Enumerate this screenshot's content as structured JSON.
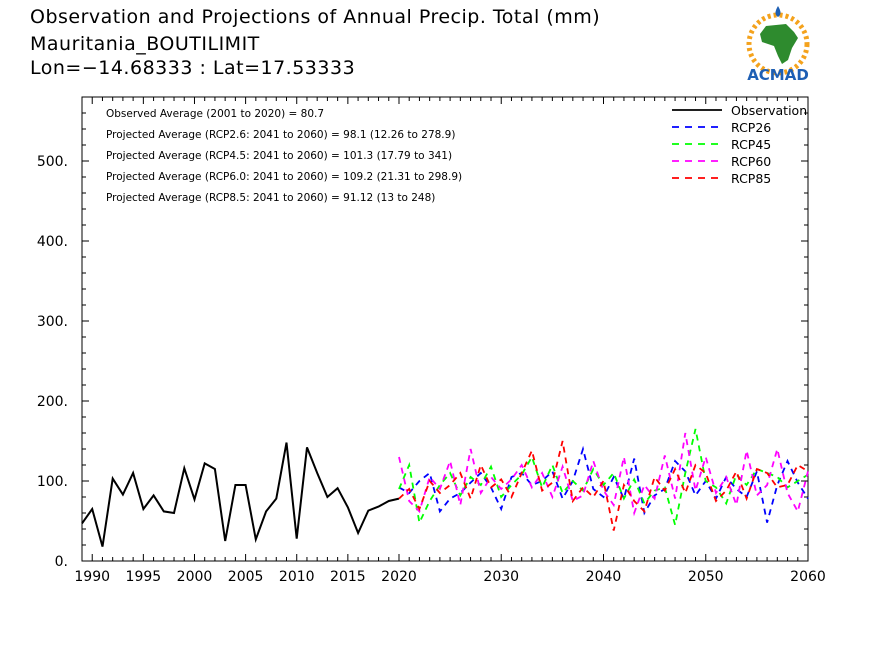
{
  "header": {
    "title": "Observation and Projections of Annual Precip. Total (mm)",
    "location": "Mauritania_BOUTILIMIT",
    "coords": "Lon=−14.68333 : Lat=17.53333"
  },
  "logo": {
    "text": "ACMAD"
  },
  "colors": {
    "observation": "#000000",
    "rcp26": "#0000ff",
    "rcp45": "#00ff00",
    "rcp60": "#ff00ff",
    "rcp85": "#ff0000"
  },
  "chart_data": {
    "type": "line",
    "xlim": [
      1989,
      2060
    ],
    "ylim": [
      0,
      580
    ],
    "x_ticks": [
      1990,
      1995,
      2000,
      2005,
      2010,
      2015,
      2020,
      2030,
      2040,
      2050,
      2060
    ],
    "y_ticks": [
      0,
      100,
      200,
      300,
      400,
      500
    ],
    "x_tick_labels": [
      "1990",
      "1995",
      "2000",
      "2005",
      "2010",
      "2015",
      "2020",
      "2030",
      "2040",
      "2050",
      "2060"
    ],
    "y_tick_labels": [
      "0.",
      "100.",
      "200.",
      "300.",
      "400.",
      "500."
    ],
    "annotations": [
      "Observed Average (2001 to 2020) = 80.7",
      "Projected Average (RCP2.6: 2041 to 2060) = 98.1 (12.26 to 278.9)",
      "Projected Average (RCP4.5: 2041 to 2060) = 101.3 (17.79 to 341)",
      "Projected Average (RCP6.0: 2041 to 2060) = 109.2 (21.31 to 298.9)",
      "Projected Average (RCP8.5: 2041 to 2060) = 91.12 (13 to 248)"
    ],
    "legend_position": "top-right",
    "series": [
      {
        "name": "Observation",
        "style": "solid",
        "color": "#000000",
        "x": [
          1989,
          1990,
          1991,
          1992,
          1993,
          1994,
          1995,
          1996,
          1997,
          1998,
          1999,
          2000,
          2001,
          2002,
          2003,
          2004,
          2005,
          2006,
          2007,
          2008,
          2009,
          2010,
          2011,
          2012,
          2013,
          2014,
          2015,
          2016,
          2017,
          2018,
          2019,
          2020
        ],
        "y": [
          47,
          65,
          18,
          103,
          83,
          110,
          65,
          82,
          62,
          60,
          116,
          77,
          122,
          115,
          25,
          95,
          95,
          27,
          62,
          78,
          148,
          28,
          142,
          110,
          80,
          91,
          67,
          35,
          63,
          68,
          75,
          78
        ]
      },
      {
        "name": "RCP26",
        "style": "dashed",
        "color": "#0000ff",
        "x": [
          2020,
          2021,
          2022,
          2023,
          2024,
          2025,
          2026,
          2027,
          2028,
          2029,
          2030,
          2031,
          2032,
          2033,
          2034,
          2035,
          2036,
          2037,
          2038,
          2039,
          2040,
          2041,
          2042,
          2043,
          2044,
          2045,
          2046,
          2047,
          2048,
          2049,
          2050,
          2051,
          2052,
          2053,
          2054,
          2055,
          2056,
          2057,
          2058,
          2059,
          2060
        ],
        "y": [
          92,
          85,
          100,
          110,
          62,
          78,
          85,
          98,
          110,
          92,
          65,
          105,
          110,
          95,
          100,
          112,
          78,
          100,
          140,
          90,
          80,
          105,
          78,
          128,
          60,
          82,
          90,
          125,
          112,
          82,
          100,
          78,
          105,
          90,
          80,
          112,
          48,
          95,
          125,
          98,
          78
        ]
      },
      {
        "name": "RCP45",
        "style": "dashed",
        "color": "#00ff00",
        "x": [
          2020,
          2021,
          2022,
          2023,
          2024,
          2025,
          2026,
          2027,
          2028,
          2029,
          2030,
          2031,
          2032,
          2033,
          2034,
          2035,
          2036,
          2037,
          2038,
          2039,
          2040,
          2041,
          2042,
          2043,
          2044,
          2045,
          2046,
          2047,
          2048,
          2049,
          2050,
          2051,
          2052,
          2053,
          2054,
          2055,
          2056,
          2057,
          2058,
          2059,
          2060
        ],
        "y": [
          90,
          120,
          48,
          75,
          95,
          110,
          82,
          105,
          95,
          118,
          80,
          95,
          108,
          130,
          92,
          120,
          85,
          100,
          88,
          115,
          95,
          110,
          78,
          102,
          72,
          88,
          92,
          45,
          110,
          165,
          100,
          92,
          72,
          108,
          95,
          115,
          110,
          105,
          92,
          100,
          108
        ]
      },
      {
        "name": "RCP60",
        "style": "dashed",
        "color": "#ff00ff",
        "x": [
          2020,
          2021,
          2022,
          2023,
          2024,
          2025,
          2026,
          2027,
          2028,
          2029,
          2030,
          2031,
          2032,
          2033,
          2034,
          2035,
          2036,
          2037,
          2038,
          2039,
          2040,
          2041,
          2042,
          2043,
          2044,
          2045,
          2046,
          2047,
          2048,
          2049,
          2050,
          2051,
          2052,
          2053,
          2054,
          2055,
          2056,
          2057,
          2058,
          2059,
          2060
        ],
        "y": [
          130,
          75,
          62,
          105,
          90,
          125,
          70,
          140,
          85,
          105,
          90,
          102,
          120,
          92,
          110,
          80,
          118,
          75,
          82,
          125,
          88,
          70,
          130,
          60,
          95,
          78,
          132,
          78,
          160,
          88,
          130,
          85,
          105,
          70,
          138,
          82,
          95,
          140,
          85,
          62,
          112
        ]
      },
      {
        "name": "RCP85",
        "style": "dashed",
        "color": "#ff0000",
        "x": [
          2020,
          2021,
          2022,
          2023,
          2024,
          2025,
          2026,
          2027,
          2028,
          2029,
          2030,
          2031,
          2032,
          2033,
          2034,
          2035,
          2036,
          2037,
          2038,
          2039,
          2040,
          2041,
          2042,
          2043,
          2044,
          2045,
          2046,
          2047,
          2048,
          2049,
          2050,
          2051,
          2052,
          2053,
          2054,
          2055,
          2056,
          2057,
          2058,
          2059,
          2060
        ],
        "y": [
          78,
          90,
          65,
          100,
          85,
          95,
          110,
          78,
          120,
          92,
          102,
          80,
          110,
          138,
          88,
          98,
          150,
          75,
          92,
          80,
          100,
          38,
          95,
          75,
          62,
          105,
          88,
          115,
          85,
          120,
          110,
          75,
          88,
          112,
          78,
          115,
          110,
          92,
          95,
          120,
          112
        ]
      }
    ]
  }
}
